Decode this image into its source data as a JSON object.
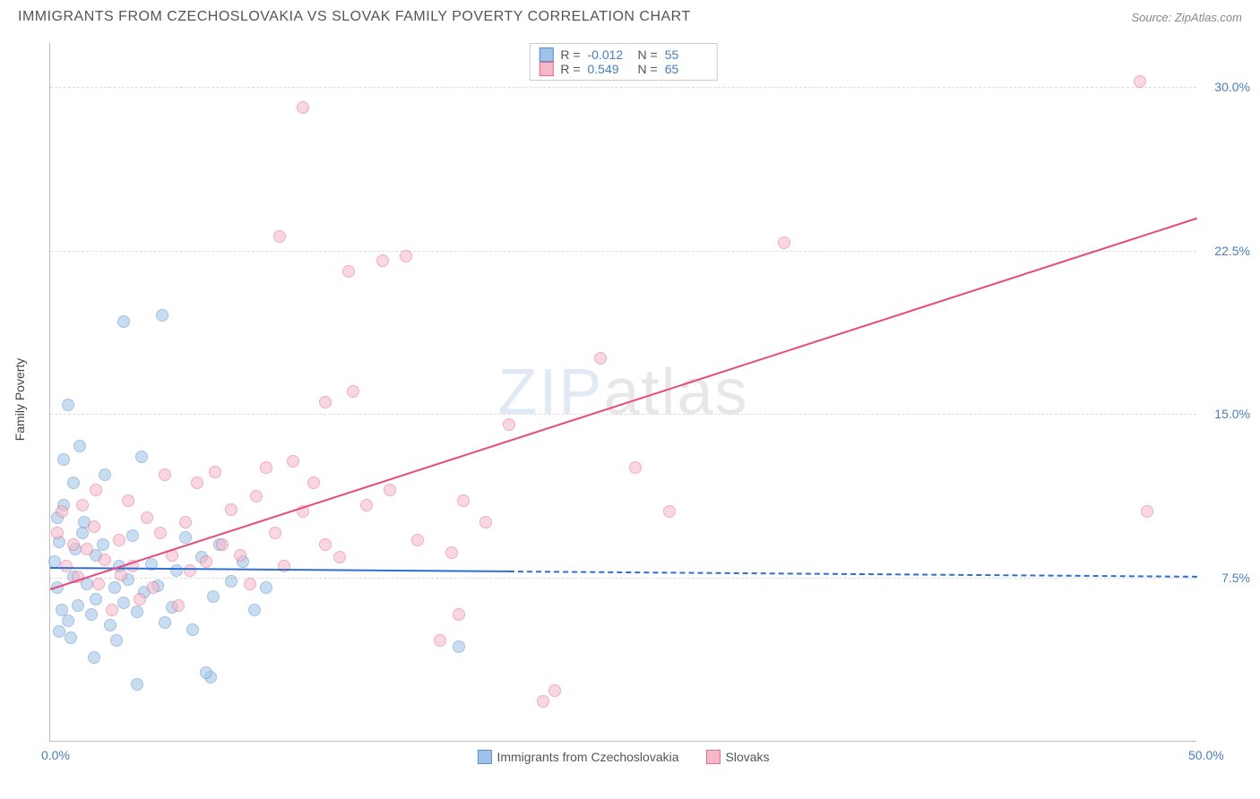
{
  "header": {
    "title": "IMMIGRANTS FROM CZECHOSLOVAKIA VS SLOVAK FAMILY POVERTY CORRELATION CHART",
    "source_prefix": "Source: ",
    "source": "ZipAtlas.com"
  },
  "chart": {
    "type": "scatter",
    "background_color": "#ffffff",
    "grid_color": "#e0e0e0",
    "axis_color": "#bbbbbb",
    "tick_color": "#4a7ebb",
    "xlim": [
      0,
      50
    ],
    "ylim": [
      0,
      32
    ],
    "xticks": [
      {
        "v": 0.0,
        "label": "0.0%"
      },
      {
        "v": 50.0,
        "label": "50.0%"
      }
    ],
    "yticks": [
      {
        "v": 7.5,
        "label": "7.5%"
      },
      {
        "v": 15.0,
        "label": "15.0%"
      },
      {
        "v": 22.5,
        "label": "22.5%"
      },
      {
        "v": 30.0,
        "label": "30.0%"
      }
    ],
    "yaxis_label": "Family Poverty",
    "watermark": {
      "zip": "ZIP",
      "atlas": "atlas"
    },
    "point_radius": 7,
    "point_opacity": 0.55,
    "series": [
      {
        "id": "blue",
        "name": "Immigrants from Czechoslovakia",
        "fill": "#9ec3e6",
        "stroke": "#5a8fd6",
        "R": "-0.012",
        "N": "55",
        "trend": {
          "y0": 8.0,
          "y50": 7.6,
          "solid_until_x": 20,
          "color": "#2f6fd0"
        },
        "points": [
          [
            0.2,
            8.2
          ],
          [
            0.3,
            7.0
          ],
          [
            0.4,
            9.1
          ],
          [
            0.3,
            10.2
          ],
          [
            0.6,
            10.8
          ],
          [
            0.5,
            6.0
          ],
          [
            0.8,
            5.5
          ],
          [
            0.4,
            5.0
          ],
          [
            0.9,
            4.7
          ],
          [
            1.0,
            7.5
          ],
          [
            1.1,
            8.8
          ],
          [
            1.2,
            6.2
          ],
          [
            1.4,
            9.5
          ],
          [
            1.0,
            11.8
          ],
          [
            0.6,
            12.9
          ],
          [
            1.3,
            13.5
          ],
          [
            0.8,
            15.4
          ],
          [
            1.6,
            7.2
          ],
          [
            1.8,
            5.8
          ],
          [
            1.5,
            10.0
          ],
          [
            2.0,
            8.5
          ],
          [
            2.0,
            6.5
          ],
          [
            2.3,
            9.0
          ],
          [
            2.4,
            12.2
          ],
          [
            2.8,
            7.0
          ],
          [
            2.6,
            5.3
          ],
          [
            2.9,
            4.6
          ],
          [
            3.0,
            8.0
          ],
          [
            3.2,
            6.3
          ],
          [
            3.4,
            7.4
          ],
          [
            3.2,
            19.2
          ],
          [
            3.6,
            9.4
          ],
          [
            3.8,
            5.9
          ],
          [
            4.1,
            6.8
          ],
          [
            4.4,
            8.1
          ],
          [
            4.7,
            7.1
          ],
          [
            4.0,
            13.0
          ],
          [
            4.9,
            19.5
          ],
          [
            5.0,
            5.4
          ],
          [
            5.3,
            6.1
          ],
          [
            5.5,
            7.8
          ],
          [
            5.9,
            9.3
          ],
          [
            6.2,
            5.1
          ],
          [
            6.6,
            8.4
          ],
          [
            7.1,
            6.6
          ],
          [
            7.4,
            9.0
          ],
          [
            7.0,
            2.9
          ],
          [
            7.9,
            7.3
          ],
          [
            8.4,
            8.2
          ],
          [
            3.8,
            2.6
          ],
          [
            8.9,
            6.0
          ],
          [
            9.4,
            7.0
          ],
          [
            17.8,
            4.3
          ],
          [
            6.8,
            3.1
          ],
          [
            1.9,
            3.8
          ]
        ]
      },
      {
        "id": "pink",
        "name": "Slovaks",
        "fill": "#f5b8c7",
        "stroke": "#e86a8c",
        "R": "0.549",
        "N": "65",
        "trend": {
          "y0": 7.0,
          "y50": 24.0,
          "solid_until_x": 50,
          "color": "#e84a7a"
        },
        "points": [
          [
            0.3,
            9.5
          ],
          [
            0.5,
            10.5
          ],
          [
            0.7,
            8.0
          ],
          [
            1.0,
            9.0
          ],
          [
            1.2,
            7.5
          ],
          [
            1.4,
            10.8
          ],
          [
            1.6,
            8.8
          ],
          [
            1.9,
            9.8
          ],
          [
            2.1,
            7.2
          ],
          [
            2.0,
            11.5
          ],
          [
            2.4,
            8.3
          ],
          [
            2.7,
            6.0
          ],
          [
            3.0,
            9.2
          ],
          [
            3.1,
            7.6
          ],
          [
            3.4,
            11.0
          ],
          [
            3.6,
            8.0
          ],
          [
            3.9,
            6.5
          ],
          [
            4.2,
            10.2
          ],
          [
            4.5,
            7.0
          ],
          [
            4.8,
            9.5
          ],
          [
            5.0,
            12.2
          ],
          [
            5.3,
            8.5
          ],
          [
            5.6,
            6.2
          ],
          [
            5.9,
            10.0
          ],
          [
            6.1,
            7.8
          ],
          [
            6.4,
            11.8
          ],
          [
            6.8,
            8.2
          ],
          [
            7.2,
            12.3
          ],
          [
            7.5,
            9.0
          ],
          [
            7.9,
            10.6
          ],
          [
            8.3,
            8.5
          ],
          [
            8.7,
            7.2
          ],
          [
            9.0,
            11.2
          ],
          [
            9.4,
            12.5
          ],
          [
            9.8,
            9.5
          ],
          [
            10.2,
            8.0
          ],
          [
            10.6,
            12.8
          ],
          [
            10.0,
            23.1
          ],
          [
            11.0,
            10.5
          ],
          [
            11.0,
            29.0
          ],
          [
            11.5,
            11.8
          ],
          [
            12.0,
            9.0
          ],
          [
            12.0,
            15.5
          ],
          [
            12.6,
            8.4
          ],
          [
            13.2,
            16.0
          ],
          [
            13.0,
            21.5
          ],
          [
            13.8,
            10.8
          ],
          [
            14.5,
            22.0
          ],
          [
            14.8,
            11.5
          ],
          [
            15.5,
            22.2
          ],
          [
            16.0,
            9.2
          ],
          [
            17.0,
            4.6
          ],
          [
            17.8,
            5.8
          ],
          [
            17.5,
            8.6
          ],
          [
            18.0,
            11.0
          ],
          [
            19.0,
            10.0
          ],
          [
            20.0,
            14.5
          ],
          [
            21.5,
            1.8
          ],
          [
            22.0,
            2.3
          ],
          [
            24.0,
            17.5
          ],
          [
            25.5,
            12.5
          ],
          [
            27.0,
            10.5
          ],
          [
            32.0,
            22.8
          ],
          [
            47.5,
            30.2
          ],
          [
            47.8,
            10.5
          ]
        ]
      }
    ],
    "legend_stats_labels": {
      "R": "R =",
      "N": "N ="
    }
  }
}
